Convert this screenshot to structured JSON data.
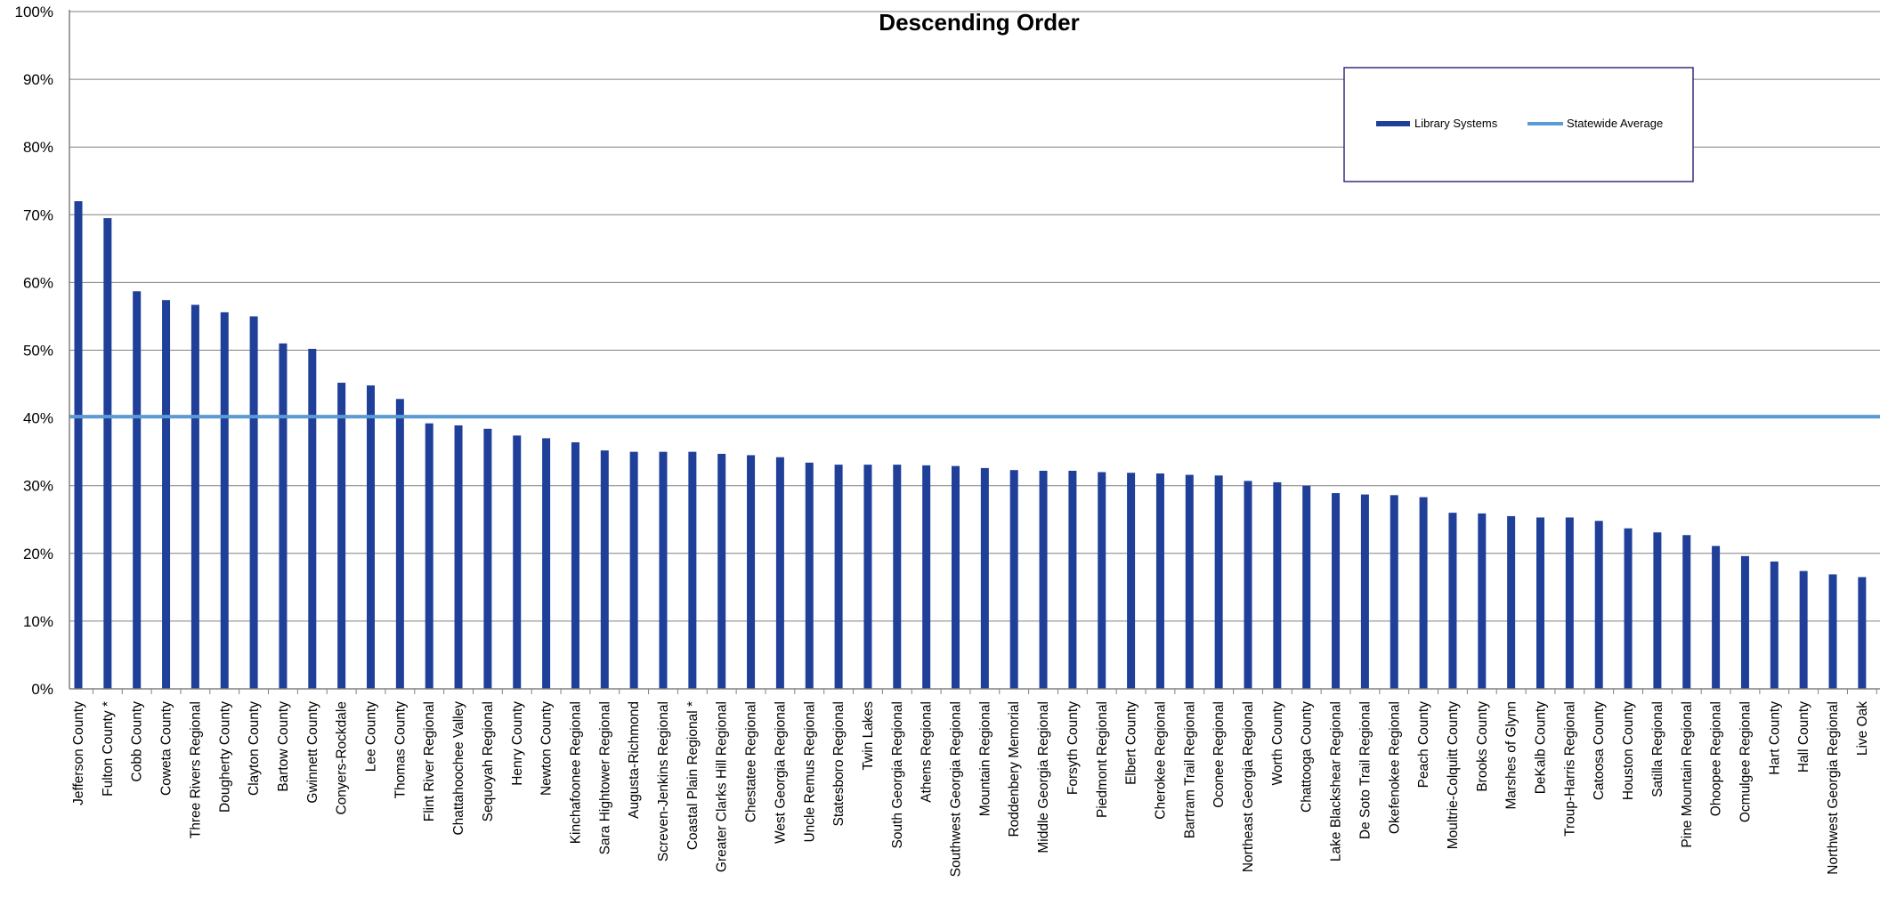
{
  "chart_data": {
    "type": "bar",
    "title": "Descending Order",
    "xlabel": "",
    "ylabel": "",
    "ylim": [
      0,
      1
    ],
    "yticks": [
      "0%",
      "10%",
      "20%",
      "30%",
      "40%",
      "50%",
      "60%",
      "70%",
      "80%",
      "90%",
      "100%"
    ],
    "grid": true,
    "legend_position": "top-right",
    "categories": [
      "Jefferson County",
      "Fulton County *",
      "Cobb County",
      "Coweta County",
      "Three Rivers Regional",
      "Dougherty County",
      "Clayton County",
      "Bartow County",
      "Gwinnett County",
      "Conyers-Rockdale",
      "Lee County",
      "Thomas County",
      "Flint River Regional",
      "Chattahoochee Valley",
      "Sequoyah Regional",
      "Henry County",
      "Newton County",
      "Kinchafoonee Regional",
      "Sara Hightower Regional",
      "Augusta-Richmond",
      "Screven-Jenkins Regional",
      "Coastal Plain Regional *",
      "Greater Clarks Hill Regional",
      "Chestatee Regional",
      "West Georgia Regional",
      "Uncle Remus Regional",
      "Statesboro Regional",
      "Twin Lakes",
      "South Georgia Regional",
      "Athens Regional",
      "Southwest Georgia Regional",
      "Mountain Regional",
      "Roddenbery Memorial",
      "Middle Georgia Regional",
      "Forsyth County",
      "Piedmont Regional",
      "Elbert County",
      "Cherokee Regional",
      "Bartram Trail Regional",
      "Oconee Regional",
      "Northeast Georgia Regional",
      "Worth County",
      "Chattooga County",
      "Lake Blackshear Regional",
      "De Soto Trail Regional",
      "Okefenokee Regional",
      "Peach County",
      "Moultrie-Colquitt County",
      "Brooks County",
      "Marshes of Glynn",
      "DeKalb County",
      "Troup-Harris Regional",
      "Catoosa County",
      "Houston County",
      "Satilla Regional",
      "Pine Mountain Regional",
      "Ohoopee Regional",
      "Ocmulgee Regional",
      "Hart County",
      "Hall County",
      "Northwest Georgia Regional",
      "Live Oak"
    ],
    "series": [
      {
        "name": "Library Systems",
        "color": "#1F3F99",
        "values": [
          0.72,
          0.695,
          0.587,
          0.574,
          0.567,
          0.556,
          0.55,
          0.51,
          0.502,
          0.452,
          0.448,
          0.428,
          0.392,
          0.389,
          0.384,
          0.374,
          0.37,
          0.364,
          0.352,
          0.35,
          0.35,
          0.35,
          0.347,
          0.345,
          0.342,
          0.334,
          0.331,
          0.331,
          0.331,
          0.33,
          0.329,
          0.326,
          0.323,
          0.322,
          0.322,
          0.32,
          0.319,
          0.318,
          0.316,
          0.315,
          0.307,
          0.305,
          0.3,
          0.289,
          0.287,
          0.286,
          0.283,
          0.26,
          0.259,
          0.255,
          0.253,
          0.253,
          0.248,
          0.237,
          0.231,
          0.227,
          0.211,
          0.196,
          0.188,
          0.174,
          0.169,
          0.165
        ]
      },
      {
        "name": "Statewide Average",
        "color": "#5B9BD5",
        "type": "line",
        "value": 0.402
      }
    ]
  }
}
